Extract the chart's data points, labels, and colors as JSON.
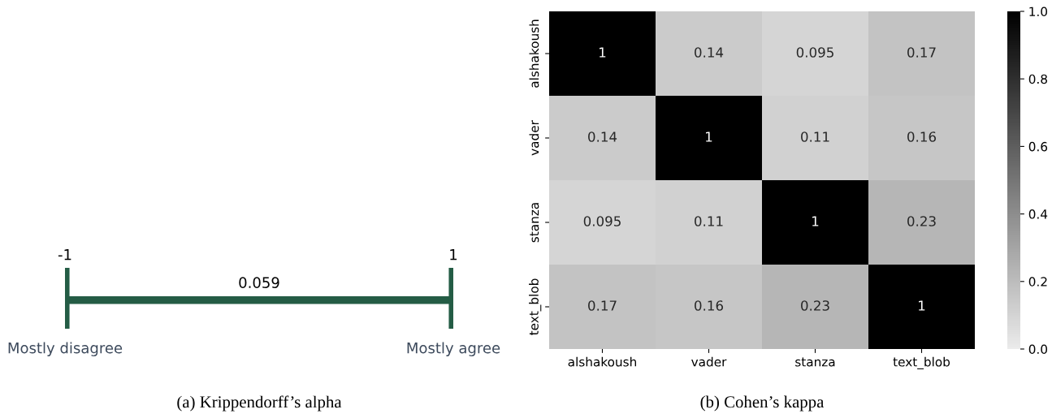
{
  "chart_data": [
    {
      "type": "other",
      "title": "(a) Krippendorff’s alpha",
      "color": "#245c45",
      "annotations": [
        "-1",
        "1",
        "0.059",
        "Mostly disagree",
        "Mostly agree"
      ]
    },
    {
      "type": "heatmap",
      "title": "(b) Cohen’s kappa",
      "categories": [
        "alshakoush",
        "vader",
        "stanza",
        "text_blob"
      ],
      "y_categories": [
        "alshakoush",
        "vader",
        "stanza",
        "text_blob"
      ],
      "cells": [
        [
          1,
          0.14,
          0.095,
          0.17
        ],
        [
          0.14,
          1,
          0.11,
          0.16
        ],
        [
          0.095,
          0.11,
          1,
          0.23
        ],
        [
          0.17,
          0.16,
          0.23,
          1
        ]
      ],
      "data_labels": true,
      "clim": [
        0,
        1
      ],
      "cticks": [
        {
          "value": 0,
          "label": "0.0"
        },
        {
          "value": 0.2,
          "label": "0.2"
        },
        {
          "value": 0.4,
          "label": "0.4"
        },
        {
          "value": 0.6,
          "label": "0.6"
        },
        {
          "value": 0.8,
          "label": "0.8"
        },
        {
          "value": 1,
          "label": "1.0"
        }
      ]
    }
  ]
}
